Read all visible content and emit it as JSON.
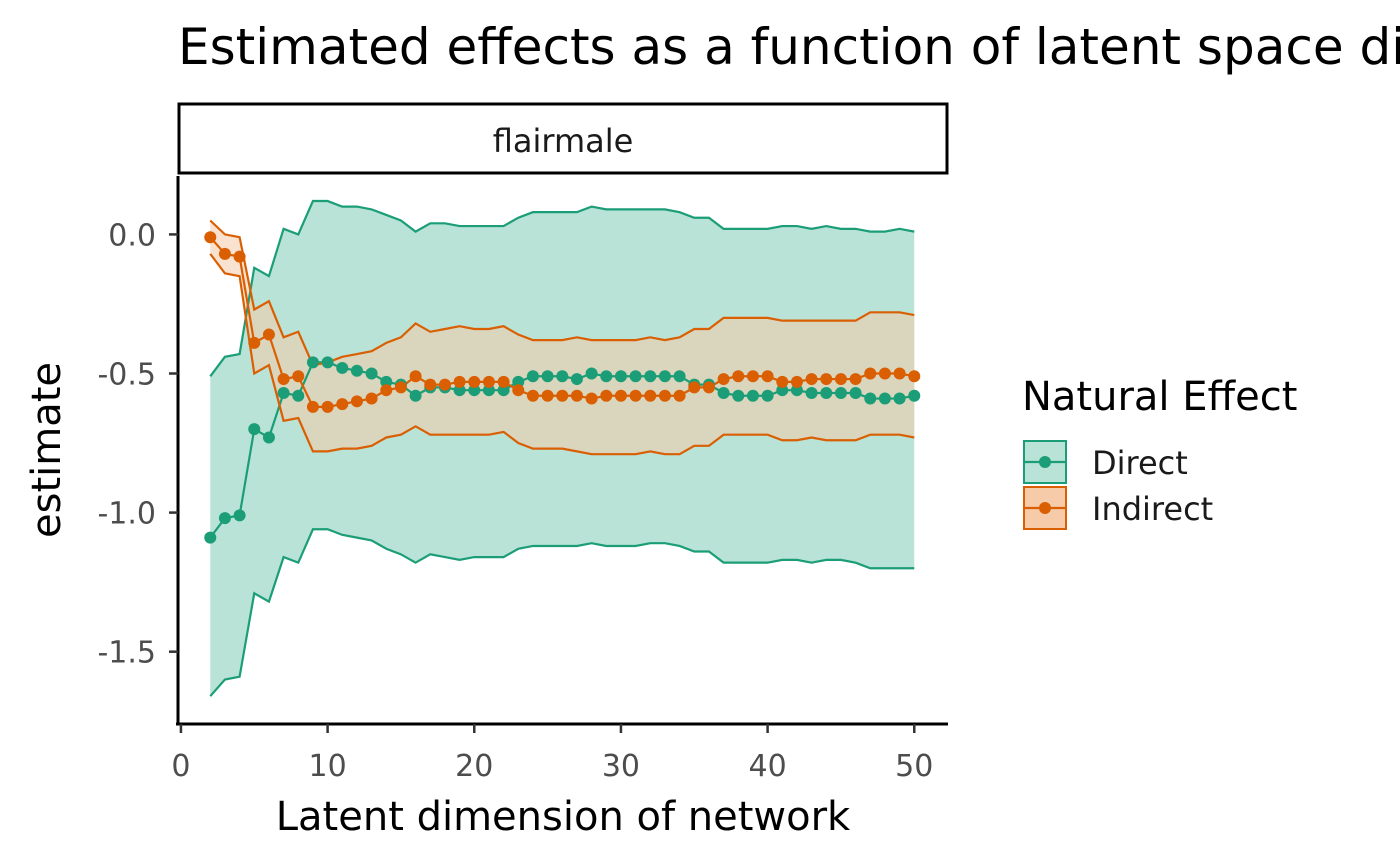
{
  "chart_data": {
    "type": "line",
    "title": "Estimated effects as a function of latent space dimension",
    "facet": "flairmale",
    "xlabel": "Latent dimension of network",
    "ylabel": "estimate",
    "xlim": [
      -0.2,
      52.3
    ],
    "ylim": [
      -1.76,
      0.21
    ],
    "x_ticks": [
      0,
      10,
      20,
      30,
      40,
      50
    ],
    "y_ticks": [
      0.0,
      -0.5,
      -1.0,
      -1.5
    ],
    "x_tick_labels": [
      "0",
      "10",
      "20",
      "30",
      "40",
      "50"
    ],
    "y_tick_labels": [
      "0.0",
      "-0.5",
      "-1.0",
      "-1.5"
    ],
    "legend": {
      "title": "Natural Effect",
      "position": "right"
    },
    "x": [
      2,
      3,
      4,
      5,
      6,
      7,
      8,
      9,
      10,
      11,
      12,
      13,
      14,
      15,
      16,
      17,
      18,
      19,
      20,
      21,
      22,
      23,
      24,
      25,
      26,
      27,
      28,
      29,
      30,
      31,
      32,
      33,
      34,
      35,
      36,
      37,
      38,
      39,
      40,
      41,
      42,
      43,
      44,
      45,
      46,
      47,
      48,
      49,
      50
    ],
    "series": [
      {
        "name": "Direct",
        "color": "#1b9e77",
        "fill": "#b9e3d6",
        "values": [
          -1.09,
          -1.02,
          -1.01,
          -0.7,
          -0.73,
          -0.57,
          -0.58,
          -0.46,
          -0.46,
          -0.48,
          -0.49,
          -0.5,
          -0.53,
          -0.54,
          -0.58,
          -0.55,
          -0.55,
          -0.56,
          -0.56,
          -0.56,
          -0.56,
          -0.53,
          -0.51,
          -0.51,
          -0.51,
          -0.52,
          -0.5,
          -0.51,
          -0.51,
          -0.51,
          -0.51,
          -0.51,
          -0.51,
          -0.54,
          -0.54,
          -0.57,
          -0.58,
          -0.58,
          -0.58,
          -0.56,
          -0.56,
          -0.57,
          -0.57,
          -0.57,
          -0.57,
          -0.59,
          -0.59,
          -0.59,
          -0.58
        ],
        "lower": [
          -1.66,
          -1.6,
          -1.59,
          -1.29,
          -1.32,
          -1.16,
          -1.18,
          -1.06,
          -1.06,
          -1.08,
          -1.09,
          -1.1,
          -1.13,
          -1.15,
          -1.18,
          -1.15,
          -1.16,
          -1.17,
          -1.16,
          -1.16,
          -1.16,
          -1.13,
          -1.12,
          -1.12,
          -1.12,
          -1.12,
          -1.11,
          -1.12,
          -1.12,
          -1.12,
          -1.11,
          -1.11,
          -1.12,
          -1.14,
          -1.14,
          -1.18,
          -1.18,
          -1.18,
          -1.18,
          -1.17,
          -1.17,
          -1.18,
          -1.17,
          -1.17,
          -1.18,
          -1.2,
          -1.2,
          -1.2,
          -1.2
        ],
        "upper": [
          -0.51,
          -0.44,
          -0.43,
          -0.12,
          -0.15,
          0.02,
          0.0,
          0.12,
          0.12,
          0.1,
          0.1,
          0.09,
          0.07,
          0.05,
          0.01,
          0.04,
          0.04,
          0.03,
          0.03,
          0.03,
          0.03,
          0.06,
          0.08,
          0.08,
          0.08,
          0.08,
          0.1,
          0.09,
          0.09,
          0.09,
          0.09,
          0.09,
          0.08,
          0.06,
          0.06,
          0.02,
          0.02,
          0.02,
          0.02,
          0.03,
          0.03,
          0.02,
          0.03,
          0.02,
          0.02,
          0.01,
          0.01,
          0.02,
          0.01
        ]
      },
      {
        "name": "Indirect",
        "color": "#d95f02",
        "fill": "#f5cbaa",
        "values": [
          -0.01,
          -0.07,
          -0.08,
          -0.39,
          -0.36,
          -0.52,
          -0.51,
          -0.62,
          -0.62,
          -0.61,
          -0.6,
          -0.59,
          -0.56,
          -0.55,
          -0.51,
          -0.54,
          -0.54,
          -0.53,
          -0.53,
          -0.53,
          -0.53,
          -0.56,
          -0.58,
          -0.58,
          -0.58,
          -0.58,
          -0.59,
          -0.58,
          -0.58,
          -0.58,
          -0.58,
          -0.58,
          -0.58,
          -0.55,
          -0.55,
          -0.52,
          -0.51,
          -0.51,
          -0.51,
          -0.53,
          -0.53,
          -0.52,
          -0.52,
          -0.52,
          -0.52,
          -0.5,
          -0.5,
          -0.5,
          -0.51
        ],
        "lower": [
          -0.07,
          -0.14,
          -0.15,
          -0.5,
          -0.47,
          -0.67,
          -0.66,
          -0.78,
          -0.78,
          -0.77,
          -0.77,
          -0.76,
          -0.73,
          -0.72,
          -0.69,
          -0.72,
          -0.72,
          -0.72,
          -0.72,
          -0.72,
          -0.71,
          -0.75,
          -0.77,
          -0.77,
          -0.77,
          -0.78,
          -0.79,
          -0.79,
          -0.79,
          -0.79,
          -0.78,
          -0.79,
          -0.79,
          -0.76,
          -0.76,
          -0.72,
          -0.72,
          -0.72,
          -0.72,
          -0.74,
          -0.74,
          -0.73,
          -0.74,
          -0.74,
          -0.74,
          -0.72,
          -0.72,
          -0.72,
          -0.73
        ],
        "upper": [
          0.05,
          0.0,
          -0.01,
          -0.27,
          -0.24,
          -0.37,
          -0.35,
          -0.47,
          -0.46,
          -0.44,
          -0.43,
          -0.42,
          -0.39,
          -0.37,
          -0.32,
          -0.35,
          -0.34,
          -0.33,
          -0.34,
          -0.34,
          -0.33,
          -0.36,
          -0.38,
          -0.38,
          -0.38,
          -0.37,
          -0.38,
          -0.38,
          -0.38,
          -0.38,
          -0.37,
          -0.38,
          -0.37,
          -0.34,
          -0.34,
          -0.3,
          -0.3,
          -0.3,
          -0.3,
          -0.31,
          -0.31,
          -0.31,
          -0.31,
          -0.31,
          -0.31,
          -0.28,
          -0.28,
          -0.28,
          -0.29
        ]
      }
    ]
  }
}
